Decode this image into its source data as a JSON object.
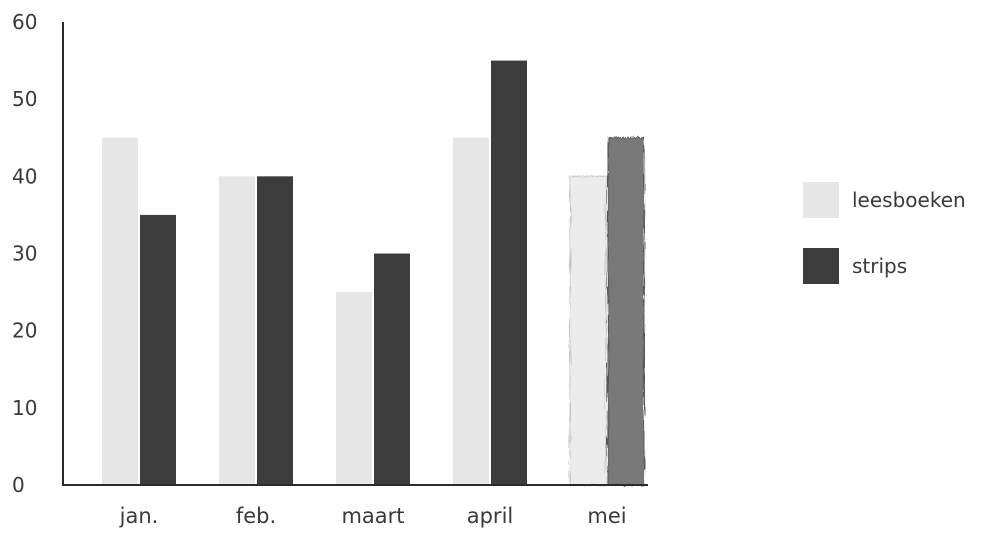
{
  "chart_data": {
    "type": "bar",
    "title": "",
    "xlabel": "",
    "ylabel": "",
    "ylim": [
      0,
      60
    ],
    "yticks": [
      0,
      10,
      20,
      30,
      40,
      50,
      60
    ],
    "categories": [
      "jan.",
      "feb.",
      "maart",
      "april",
      "mei"
    ],
    "series": [
      {
        "name": "leesboeken",
        "values": [
          45,
          40,
          25,
          45,
          40
        ],
        "color": "#e6e6e6"
      },
      {
        "name": "strips",
        "values": [
          35,
          40,
          30,
          55,
          45
        ],
        "color": "#3c3c3c"
      }
    ],
    "hand_drawn_category": "mei",
    "grid": false,
    "legend": "right"
  }
}
